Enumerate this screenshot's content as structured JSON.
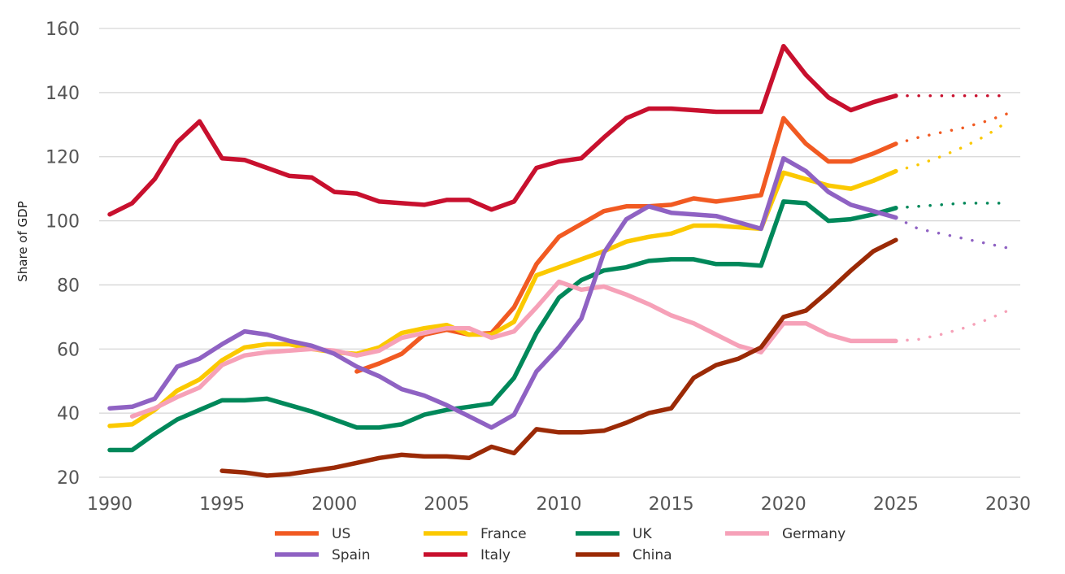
{
  "chart_data": {
    "type": "line",
    "title": "",
    "xlabel": "",
    "ylabel": "Share of GDP",
    "xlim": [
      1990,
      2030
    ],
    "ylim": [
      20,
      160
    ],
    "x_ticks": [
      1990,
      1995,
      2000,
      2005,
      2010,
      2015,
      2020,
      2025,
      2030
    ],
    "y_ticks": [
      20,
      40,
      60,
      80,
      100,
      120,
      140,
      160
    ],
    "grid": "horizontal",
    "legend_position": "bottom",
    "actual_end_year": 2025,
    "projection_style": "dotted",
    "series": [
      {
        "name": "US",
        "color": "#f15a22",
        "start_year": 2001,
        "values": [
          53,
          55.5,
          58.5,
          64.5,
          66,
          64.5,
          65,
          73,
          86.5,
          95,
          99,
          103,
          104.5,
          104.5,
          105,
          107,
          106,
          107,
          108,
          132,
          124,
          118.5,
          118.5,
          121,
          124
        ],
        "projection": [
          {
            "x": 2026,
            "y": 126
          },
          {
            "x": 2027,
            "y": 127.5
          },
          {
            "x": 2028,
            "y": 129
          },
          {
            "x": 2029,
            "y": 131
          },
          {
            "x": 2030,
            "y": 133.5
          }
        ]
      },
      {
        "name": "France",
        "color": "#fbc900",
        "start_year": 1990,
        "values": [
          36,
          36.5,
          41,
          47,
          50.5,
          56.5,
          60.5,
          61.5,
          61.5,
          60,
          59,
          58.5,
          60.5,
          65,
          66.5,
          67.5,
          64.5,
          64.5,
          68.5,
          83,
          85.5,
          88,
          90.5,
          93.5,
          95,
          96,
          98.5,
          98.5,
          98,
          97.5,
          115,
          113,
          111,
          110,
          112.5,
          115.5
        ],
        "projection": [
          {
            "x": 2026,
            "y": 117.5
          },
          {
            "x": 2027,
            "y": 120
          },
          {
            "x": 2028,
            "y": 123
          },
          {
            "x": 2029,
            "y": 126.5
          },
          {
            "x": 2030,
            "y": 131
          }
        ]
      },
      {
        "name": "UK",
        "color": "#00885a",
        "start_year": 1990,
        "values": [
          28.5,
          28.5,
          33.5,
          38,
          41,
          44,
          44,
          44.5,
          42.5,
          40.5,
          38,
          35.5,
          35.5,
          36.5,
          39.5,
          41,
          42,
          43,
          51,
          65,
          76,
          81.5,
          84.5,
          85.5,
          87.5,
          88,
          88,
          86.5,
          86.5,
          86,
          106,
          105.5,
          100,
          100.5,
          102,
          104
        ],
        "projection": [
          {
            "x": 2026,
            "y": 104.5
          },
          {
            "x": 2027,
            "y": 105
          },
          {
            "x": 2028,
            "y": 105.5
          },
          {
            "x": 2029,
            "y": 105.5
          },
          {
            "x": 2030,
            "y": 105.5
          }
        ]
      },
      {
        "name": "Germany",
        "color": "#f6a1b8",
        "start_year": 1991,
        "values": [
          39,
          41.5,
          45,
          48,
          55,
          58,
          59,
          59.5,
          60,
          59.5,
          58,
          59.5,
          63.5,
          65,
          66.5,
          66.5,
          63.5,
          65.5,
          73,
          81,
          78.5,
          79.5,
          77,
          74,
          70.5,
          68,
          64.5,
          61,
          59,
          68,
          68,
          64.5,
          62.5,
          62.5,
          62.5
        ],
        "projection": [
          {
            "x": 2026,
            "y": 63
          },
          {
            "x": 2027,
            "y": 64.5
          },
          {
            "x": 2028,
            "y": 66.5
          },
          {
            "x": 2029,
            "y": 69
          },
          {
            "x": 2030,
            "y": 72
          }
        ]
      },
      {
        "name": "Spain",
        "color": "#8f62c3",
        "start_year": 1990,
        "values": [
          41.5,
          42,
          44.5,
          54.5,
          57,
          61.5,
          65.5,
          64.5,
          62.5,
          61,
          58.5,
          54.5,
          51.5,
          47.5,
          45.5,
          42.5,
          39,
          35.5,
          39.5,
          53,
          60.5,
          69.5,
          90,
          100.5,
          104.5,
          102.5,
          102,
          101.5,
          99.5,
          97.5,
          119.5,
          115.5,
          109,
          105,
          103,
          101
        ],
        "projection": [
          {
            "x": 2026,
            "y": 97.5
          },
          {
            "x": 2027,
            "y": 96
          },
          {
            "x": 2028,
            "y": 94.5
          },
          {
            "x": 2029,
            "y": 93
          },
          {
            "x": 2030,
            "y": 91.5
          }
        ]
      },
      {
        "name": "Italy",
        "color": "#c8102e",
        "start_year": 1990,
        "values": [
          102,
          105.5,
          113,
          124.5,
          131,
          119.5,
          119,
          116.5,
          114,
          113.5,
          109,
          108.5,
          106,
          105.5,
          105,
          106.5,
          106.5,
          103.5,
          106,
          116.5,
          118.5,
          119.5,
          126,
          132,
          135,
          135,
          134.5,
          134,
          134,
          134,
          154.5,
          145.5,
          138.5,
          134.5,
          137,
          139
        ],
        "projection": [
          {
            "x": 2026,
            "y": 139
          },
          {
            "x": 2027,
            "y": 139
          },
          {
            "x": 2028,
            "y": 139
          },
          {
            "x": 2029,
            "y": 139
          },
          {
            "x": 2030,
            "y": 139
          }
        ]
      },
      {
        "name": "China",
        "color": "#9b2a06",
        "start_year": 1995,
        "values": [
          22,
          21.5,
          20.5,
          21,
          22,
          23,
          24.5,
          26,
          27,
          26.5,
          26.5,
          26,
          29.5,
          27.5,
          35,
          34,
          34,
          34.5,
          37,
          40,
          41.5,
          51,
          55,
          57,
          60.5,
          70,
          72,
          78,
          84.5,
          90.5,
          94
        ],
        "projection": []
      }
    ]
  }
}
